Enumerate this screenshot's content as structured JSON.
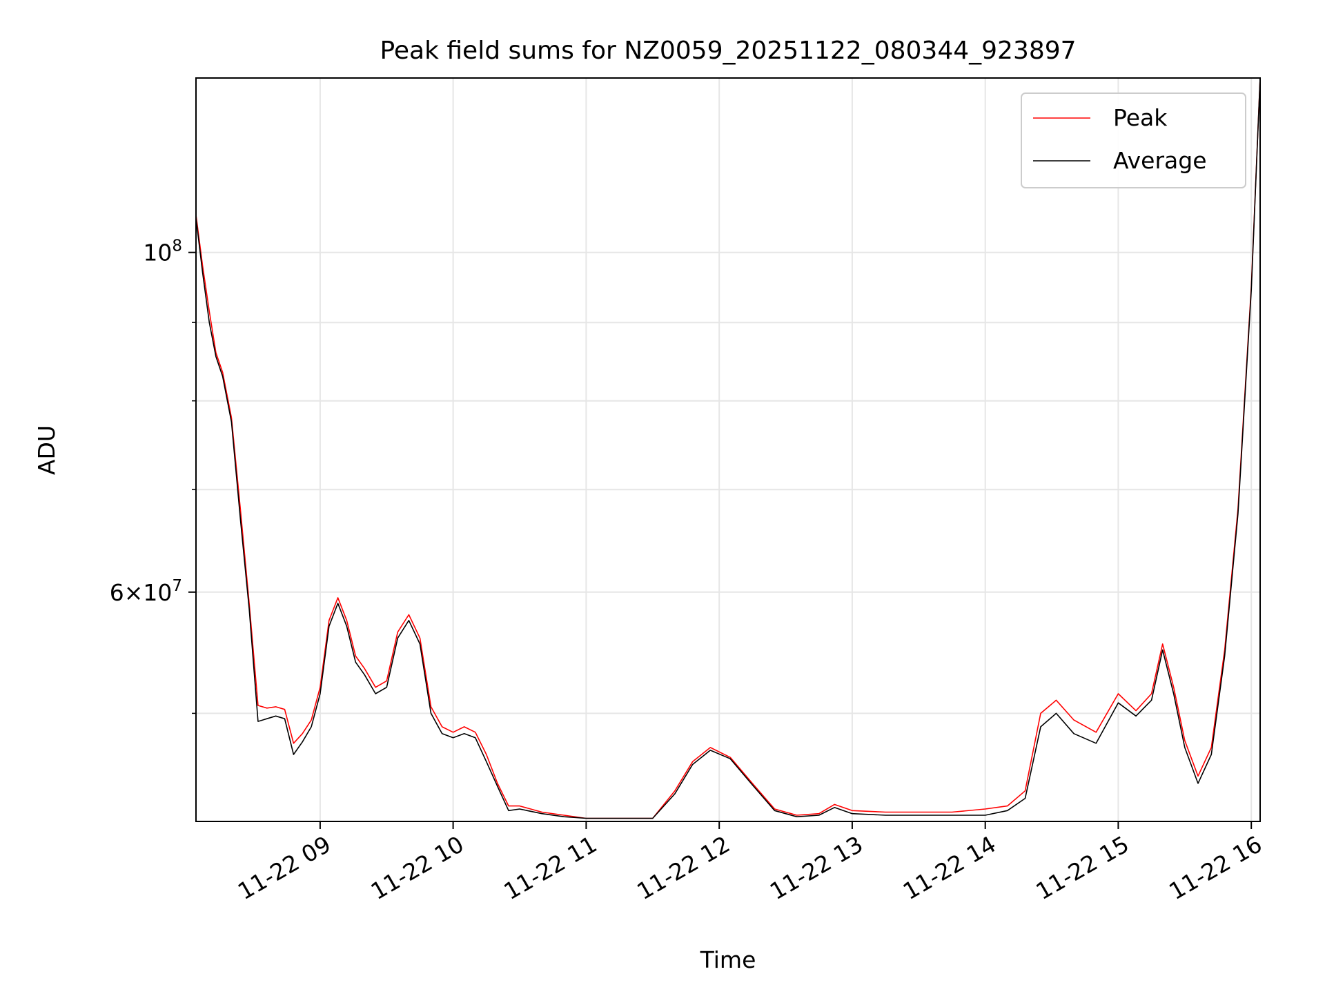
{
  "chart_data": {
    "type": "line",
    "title": "Peak field sums for NZ0059_20251122_080344_923897",
    "xlabel": "Time",
    "ylabel": "ADU",
    "x_range": [
      "11-22 08:04",
      "11-22 16:04"
    ],
    "y_scale": "log",
    "y_range": [
      42500000,
      130000000
    ],
    "grid": true,
    "legend_position": "top-right",
    "x_ticks": [
      "11-22 09",
      "11-22 10",
      "11-22 11",
      "11-22 12",
      "11-22 13",
      "11-22 14",
      "11-22 15",
      "11-22 16"
    ],
    "y_tick_labels": [
      {
        "value": 100000000,
        "base": "10",
        "exp": "8"
      },
      {
        "value": 60000000,
        "mant": "6",
        "times": "×",
        "base": "10",
        "exp": "7"
      }
    ],
    "y_minor_ticks": [
      50000000,
      70000000,
      80000000,
      90000000
    ],
    "series": [
      {
        "name": "Peak",
        "color": "#ff0000",
        "points": [
          [
            "11-22 08:04",
            105800000
          ],
          [
            "11-22 08:07",
            98000000
          ],
          [
            "11-22 08:10",
            91500000
          ],
          [
            "11-22 08:13",
            86000000
          ],
          [
            "11-22 08:16",
            83500000
          ],
          [
            "11-22 08:20",
            78000000
          ],
          [
            "11-22 08:24",
            68000000
          ],
          [
            "11-22 08:28",
            59000000
          ],
          [
            "11-22 08:32",
            50600000
          ],
          [
            "11-22 08:36",
            50400000
          ],
          [
            "11-22 08:40",
            50500000
          ],
          [
            "11-22 08:44",
            50300000
          ],
          [
            "11-22 08:48",
            47800000
          ],
          [
            "11-22 08:52",
            48500000
          ],
          [
            "11-22 08:56",
            49500000
          ],
          [
            "11-22 09:00",
            52000000
          ],
          [
            "11-22 09:04",
            57500000
          ],
          [
            "11-22 09:08",
            59500000
          ],
          [
            "11-22 09:12",
            57500000
          ],
          [
            "11-22 09:16",
            54500000
          ],
          [
            "11-22 09:20",
            53500000
          ],
          [
            "11-22 09:25",
            52000000
          ],
          [
            "11-22 09:30",
            52500000
          ],
          [
            "11-22 09:35",
            56500000
          ],
          [
            "11-22 09:40",
            58000000
          ],
          [
            "11-22 09:45",
            56000000
          ],
          [
            "11-22 09:50",
            50500000
          ],
          [
            "11-22 09:55",
            49000000
          ],
          [
            "11-22 10:00",
            48600000
          ],
          [
            "11-22 10:05",
            49000000
          ],
          [
            "11-22 10:10",
            48600000
          ],
          [
            "11-22 10:15",
            47000000
          ],
          [
            "11-22 10:20",
            45000000
          ],
          [
            "11-22 10:25",
            43500000
          ],
          [
            "11-22 10:30",
            43500000
          ],
          [
            "11-22 10:40",
            43100000
          ],
          [
            "11-22 10:50",
            42900000
          ],
          [
            "11-22 11:00",
            42700000
          ],
          [
            "11-22 11:15",
            42700000
          ],
          [
            "11-22 11:30",
            42700000
          ],
          [
            "11-22 11:40",
            44500000
          ],
          [
            "11-22 11:48",
            46500000
          ],
          [
            "11-22 11:56",
            47500000
          ],
          [
            "11-22 12:05",
            46800000
          ],
          [
            "11-22 12:15",
            45000000
          ],
          [
            "11-22 12:25",
            43300000
          ],
          [
            "11-22 12:35",
            42900000
          ],
          [
            "11-22 12:45",
            43000000
          ],
          [
            "11-22 12:52",
            43600000
          ],
          [
            "11-22 13:00",
            43200000
          ],
          [
            "11-22 13:15",
            43100000
          ],
          [
            "11-22 13:30",
            43100000
          ],
          [
            "11-22 13:45",
            43100000
          ],
          [
            "11-22 14:00",
            43300000
          ],
          [
            "11-22 14:10",
            43500000
          ],
          [
            "11-22 14:18",
            44500000
          ],
          [
            "11-22 14:25",
            50000000
          ],
          [
            "11-22 14:32",
            51000000
          ],
          [
            "11-22 14:40",
            49500000
          ],
          [
            "11-22 14:50",
            48600000
          ],
          [
            "11-22 15:00",
            51500000
          ],
          [
            "11-22 15:08",
            50200000
          ],
          [
            "11-22 15:15",
            51500000
          ],
          [
            "11-22 15:20",
            55500000
          ],
          [
            "11-22 15:25",
            52000000
          ],
          [
            "11-22 15:30",
            48000000
          ],
          [
            "11-22 15:36",
            45500000
          ],
          [
            "11-22 15:42",
            47500000
          ],
          [
            "11-22 15:48",
            55000000
          ],
          [
            "11-22 15:54",
            68000000
          ],
          [
            "11-22 16:00",
            95000000
          ],
          [
            "11-22 16:04",
            130000000
          ]
        ]
      },
      {
        "name": "Average",
        "color": "#000000",
        "points": [
          [
            "11-22 08:04",
            105300000
          ],
          [
            "11-22 08:07",
            97000000
          ],
          [
            "11-22 08:10",
            90000000
          ],
          [
            "11-22 08:13",
            85500000
          ],
          [
            "11-22 08:16",
            83000000
          ],
          [
            "11-22 08:20",
            77500000
          ],
          [
            "11-22 08:24",
            67000000
          ],
          [
            "11-22 08:28",
            58500000
          ],
          [
            "11-22 08:32",
            49400000
          ],
          [
            "11-22 08:36",
            49600000
          ],
          [
            "11-22 08:40",
            49800000
          ],
          [
            "11-22 08:44",
            49600000
          ],
          [
            "11-22 08:48",
            47000000
          ],
          [
            "11-22 08:52",
            47900000
          ],
          [
            "11-22 08:56",
            49000000
          ],
          [
            "11-22 09:00",
            51500000
          ],
          [
            "11-22 09:04",
            57000000
          ],
          [
            "11-22 09:08",
            59000000
          ],
          [
            "11-22 09:12",
            57000000
          ],
          [
            "11-22 09:16",
            54000000
          ],
          [
            "11-22 09:20",
            53000000
          ],
          [
            "11-22 09:25",
            51500000
          ],
          [
            "11-22 09:30",
            52000000
          ],
          [
            "11-22 09:35",
            56000000
          ],
          [
            "11-22 09:40",
            57500000
          ],
          [
            "11-22 09:45",
            55500000
          ],
          [
            "11-22 09:50",
            50000000
          ],
          [
            "11-22 09:55",
            48500000
          ],
          [
            "11-22 10:00",
            48200000
          ],
          [
            "11-22 10:05",
            48500000
          ],
          [
            "11-22 10:10",
            48200000
          ],
          [
            "11-22 10:15",
            46500000
          ],
          [
            "11-22 10:20",
            44800000
          ],
          [
            "11-22 10:25",
            43200000
          ],
          [
            "11-22 10:30",
            43300000
          ],
          [
            "11-22 10:40",
            43000000
          ],
          [
            "11-22 10:50",
            42800000
          ],
          [
            "11-22 11:00",
            42700000
          ],
          [
            "11-22 11:15",
            42700000
          ],
          [
            "11-22 11:30",
            42700000
          ],
          [
            "11-22 11:40",
            44300000
          ],
          [
            "11-22 11:48",
            46300000
          ],
          [
            "11-22 11:56",
            47300000
          ],
          [
            "11-22 12:05",
            46700000
          ],
          [
            "11-22 12:15",
            44900000
          ],
          [
            "11-22 12:25",
            43200000
          ],
          [
            "11-22 12:35",
            42800000
          ],
          [
            "11-22 12:45",
            42900000
          ],
          [
            "11-22 12:52",
            43400000
          ],
          [
            "11-22 13:00",
            43000000
          ],
          [
            "11-22 13:15",
            42900000
          ],
          [
            "11-22 13:30",
            42900000
          ],
          [
            "11-22 13:45",
            42900000
          ],
          [
            "11-22 14:00",
            42900000
          ],
          [
            "11-22 14:10",
            43200000
          ],
          [
            "11-22 14:18",
            44000000
          ],
          [
            "11-22 14:25",
            49000000
          ],
          [
            "11-22 14:32",
            50000000
          ],
          [
            "11-22 14:40",
            48500000
          ],
          [
            "11-22 14:50",
            47800000
          ],
          [
            "11-22 15:00",
            50800000
          ],
          [
            "11-22 15:08",
            49800000
          ],
          [
            "11-22 15:15",
            51000000
          ],
          [
            "11-22 15:20",
            55000000
          ],
          [
            "11-22 15:25",
            51500000
          ],
          [
            "11-22 15:30",
            47500000
          ],
          [
            "11-22 15:36",
            45000000
          ],
          [
            "11-22 15:42",
            47000000
          ],
          [
            "11-22 15:48",
            54500000
          ],
          [
            "11-22 15:54",
            67500000
          ],
          [
            "11-22 16:00",
            94500000
          ],
          [
            "11-22 16:04",
            130000000
          ]
        ]
      }
    ]
  }
}
